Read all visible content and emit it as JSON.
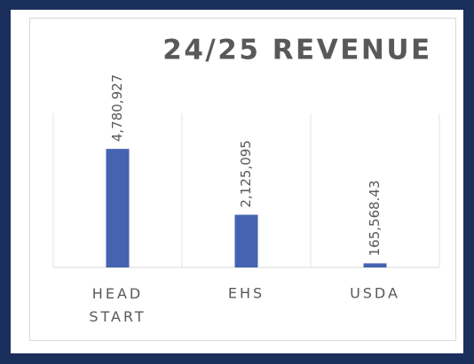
{
  "chart_data": {
    "type": "bar",
    "title": "24/25 REVENUE",
    "categories": [
      "HEAD START",
      "EHS",
      "USDA"
    ],
    "values": [
      4780927,
      2125095,
      165568.43
    ],
    "value_labels": [
      "4,780,927",
      "2,125,095",
      "165,568.43"
    ],
    "color": "#4563b0",
    "ylim": [
      0,
      10000000
    ]
  }
}
